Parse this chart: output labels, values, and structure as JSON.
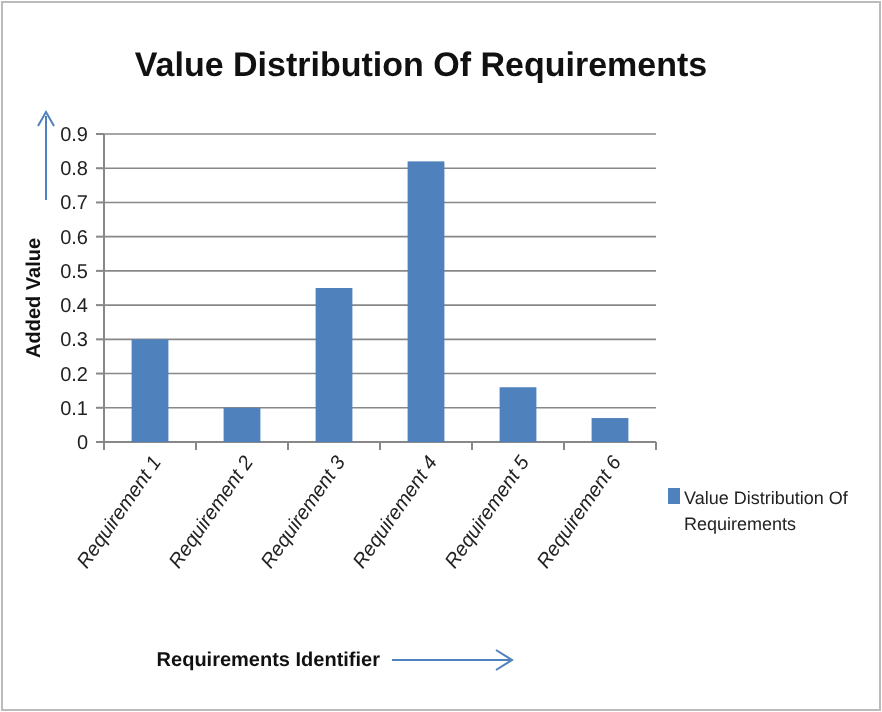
{
  "chart_data": {
    "type": "bar",
    "title": "Value Distribution Of Requirements",
    "xlabel": "Requirements Identifier",
    "ylabel": "Added Value",
    "categories": [
      "Requirement 1",
      "Requirement 2",
      "Requirement 3",
      "Requirement 4",
      "Requirement 5",
      "Requirement 6"
    ],
    "series": [
      {
        "name": "Value Distribution Of Requirements",
        "color": "#4f81bd",
        "values": [
          0.3,
          0.1,
          0.45,
          0.82,
          0.16,
          0.07
        ]
      }
    ],
    "ylim": [
      0,
      0.9
    ],
    "yticks": [
      0,
      0.1,
      0.2,
      0.3,
      0.4,
      0.5,
      0.6,
      0.7,
      0.8,
      0.9
    ],
    "grid": "y",
    "legend": "right"
  }
}
